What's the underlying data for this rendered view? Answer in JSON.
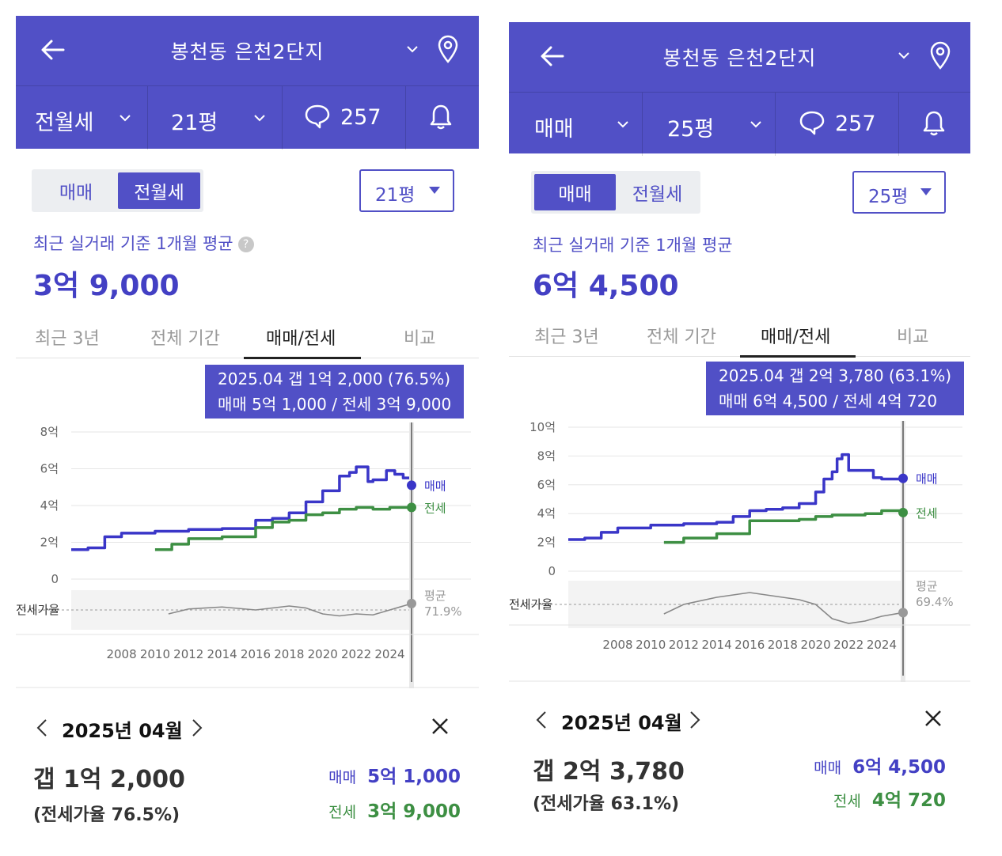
{
  "colors": {
    "header": "#5150c6",
    "sale": "#3a36c8",
    "jeonse": "#3d8f43",
    "ratio": "#888888"
  },
  "panels": [
    {
      "header": {
        "title": "봉천동 은천2단지",
        "type": "전월세",
        "size": "21평",
        "comments": "257"
      },
      "segment": {
        "sale": "매매",
        "rent": "전월세",
        "active": "rent"
      },
      "size_select": "21평",
      "caption": "최근 실거래 기준 1개월 평균",
      "price": "3억 9,000",
      "tabs": [
        "최근 3년",
        "전체 기간",
        "매매/전세",
        "비교"
      ],
      "active_tab": 2,
      "tooltip": {
        "line1": "2025.04  갭 1억 2,000 (76.5%)",
        "line2": "매매 5억 1,000 / 전세 3억 9,000"
      },
      "chart_data": {
        "type": "line",
        "y_ticks": [
          "8억",
          "6억",
          "4억",
          "2억",
          "0"
        ],
        "ymax": 8,
        "x_ticks": [
          "2008",
          "2010",
          "2012",
          "2014",
          "2016",
          "2018",
          "2020",
          "2022",
          "2024"
        ],
        "xrange": [
          2005,
          2025.3
        ],
        "series": [
          {
            "name": "매매",
            "x": [
              2005,
              2006,
              2007,
              2008,
              2010,
              2012,
              2014,
              2016,
              2017,
              2018,
              2019,
              2020,
              2021,
              2021.6,
              2022,
              2022.7,
              2023,
              2023.8,
              2024.3,
              2024.8,
              2025.3
            ],
            "values": [
              1.6,
              1.7,
              2.3,
              2.5,
              2.6,
              2.7,
              2.75,
              3.2,
              3.3,
              3.6,
              4.2,
              4.8,
              5.6,
              5.8,
              6.1,
              5.3,
              5.4,
              5.9,
              5.7,
              5.5,
              5.1
            ]
          },
          {
            "name": "전세",
            "x": [
              2010,
              2011,
              2012,
              2014,
              2016,
              2017,
              2018,
              2019,
              2020,
              2021,
              2022,
              2023,
              2024,
              2025.3
            ],
            "values": [
              1.6,
              1.9,
              2.2,
              2.3,
              2.8,
              3.1,
              3.2,
              3.5,
              3.6,
              3.8,
              3.9,
              3.8,
              3.9,
              3.9
            ]
          }
        ],
        "ratio_label": "전세가율",
        "ratio_avg_label": "평균",
        "ratio_avg": "71.9%",
        "ratio_series": {
          "x": [
            2010.8,
            2012,
            2014,
            2016,
            2018,
            2019,
            2020,
            2021,
            2022,
            2023,
            2024,
            2025.3
          ],
          "values": [
            66,
            71,
            73,
            70,
            74,
            72,
            66,
            64,
            66,
            65,
            70,
            76.5
          ]
        }
      },
      "detail": {
        "month": "2025년 04월",
        "gap": "갭 1억 2,000",
        "ratio": "(전세가율 76.5%)",
        "sale_label": "매매",
        "sale_value": "5억 1,000",
        "jeonse_label": "전세",
        "jeonse_value": "3억 9,000"
      }
    },
    {
      "header": {
        "title": "봉천동 은천2단지",
        "type": "매매",
        "size": "25평",
        "comments": "257"
      },
      "segment": {
        "sale": "매매",
        "rent": "전월세",
        "active": "sale"
      },
      "size_select": "25평",
      "caption": "최근 실거래 기준 1개월 평균",
      "price": "6억 4,500",
      "tabs": [
        "최근 3년",
        "전체 기간",
        "매매/전세",
        "비교"
      ],
      "active_tab": 2,
      "tooltip": {
        "line1": "2025.04  갭 2억 3,780 (63.1%)",
        "line2": "매매 6억 4,500 / 전세 4억 720"
      },
      "chart_data": {
        "type": "line",
        "y_ticks": [
          "10억",
          "8억",
          "6억",
          "4억",
          "2억",
          "0"
        ],
        "ymax": 10,
        "x_ticks": [
          "2008",
          "2010",
          "2012",
          "2014",
          "2016",
          "2018",
          "2020",
          "2022",
          "2024"
        ],
        "xrange": [
          2005,
          2025.3
        ],
        "series": [
          {
            "name": "매매",
            "x": [
              2005,
              2006,
              2007,
              2008,
              2010,
              2012,
              2014,
              2015,
              2016,
              2017,
              2018,
              2019,
              2020,
              2020.5,
              2021,
              2021.3,
              2021.6,
              2022,
              2023,
              2023.5,
              2024,
              2025.3
            ],
            "values": [
              2.2,
              2.3,
              2.7,
              3.0,
              3.2,
              3.3,
              3.4,
              3.8,
              4.2,
              4.3,
              4.4,
              4.7,
              5.5,
              6.4,
              6.9,
              7.8,
              8.1,
              7.0,
              7.0,
              6.5,
              6.4,
              6.45
            ]
          },
          {
            "name": "전세",
            "x": [
              2010.8,
              2012,
              2014,
              2016,
              2018,
              2019,
              2020,
              2021,
              2022,
              2023,
              2024,
              2025.3
            ],
            "values": [
              2.0,
              2.3,
              2.6,
              3.5,
              3.5,
              3.6,
              3.8,
              3.9,
              3.9,
              4.0,
              4.2,
              4.07
            ]
          }
        ],
        "ratio_label": "전세가율",
        "ratio_avg_label": "평균",
        "ratio_avg": "69.4%",
        "ratio_series": {
          "x": [
            2010.8,
            2012,
            2014,
            2016,
            2018,
            2019,
            2020,
            2021,
            2022,
            2023,
            2024,
            2025.3
          ],
          "values": [
            62,
            70,
            76,
            80,
            76,
            74,
            70,
            58,
            54,
            56,
            60,
            63.1
          ]
        }
      },
      "detail": {
        "month": "2025년 04월",
        "gap": "갭 2억 3,780",
        "ratio": "(전세가율 63.1%)",
        "sale_label": "매매",
        "sale_value": "6억 4,500",
        "jeonse_label": "전세",
        "jeonse_value": "4억 720"
      }
    }
  ]
}
